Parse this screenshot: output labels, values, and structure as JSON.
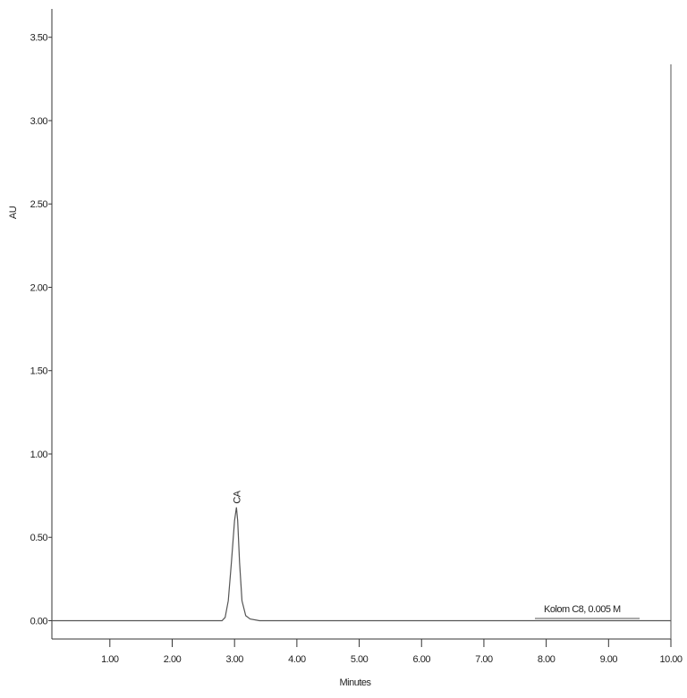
{
  "chart_data": {
    "type": "line",
    "x_label": "Minutes",
    "y_label": "AU",
    "xlim": [
      0.07,
      10
    ],
    "ylim": [
      -0.11,
      3.67
    ],
    "xticks": [
      {
        "value": 1,
        "label": "1.00"
      },
      {
        "value": 2,
        "label": "2.00"
      },
      {
        "value": 3,
        "label": "3.00"
      },
      {
        "value": 4,
        "label": "4.00"
      },
      {
        "value": 5,
        "label": "5.00"
      },
      {
        "value": 6,
        "label": "6.00"
      },
      {
        "value": 7,
        "label": "7.00"
      },
      {
        "value": 8,
        "label": "8.00"
      },
      {
        "value": 9,
        "label": "9.00"
      },
      {
        "value": 10,
        "label": "10.00"
      }
    ],
    "yticks": [
      {
        "value": 0,
        "label": "0.00"
      },
      {
        "value": 0.5,
        "label": "0.50"
      },
      {
        "value": 1,
        "label": "1.00"
      },
      {
        "value": 1.5,
        "label": "1.50"
      },
      {
        "value": 2,
        "label": "2.00"
      },
      {
        "value": 2.5,
        "label": "2.50"
      },
      {
        "value": 3,
        "label": "3.00"
      },
      {
        "value": 3.5,
        "label": "3.50"
      }
    ],
    "x": [
      0.07,
      2.8,
      2.85,
      2.9,
      2.95,
      3.0,
      3.03,
      3.05,
      3.08,
      3.12,
      3.18,
      3.25,
      3.4,
      10
    ],
    "series": [
      {
        "name": "Kolom C8, 0.005 M",
        "color": "#555555",
        "values": [
          0,
          0,
          0.02,
          0.12,
          0.35,
          0.6,
          0.68,
          0.6,
          0.35,
          0.12,
          0.03,
          0.01,
          0,
          0
        ]
      }
    ],
    "annotations": [
      {
        "text": "CA",
        "x": 3.03
      }
    ]
  }
}
